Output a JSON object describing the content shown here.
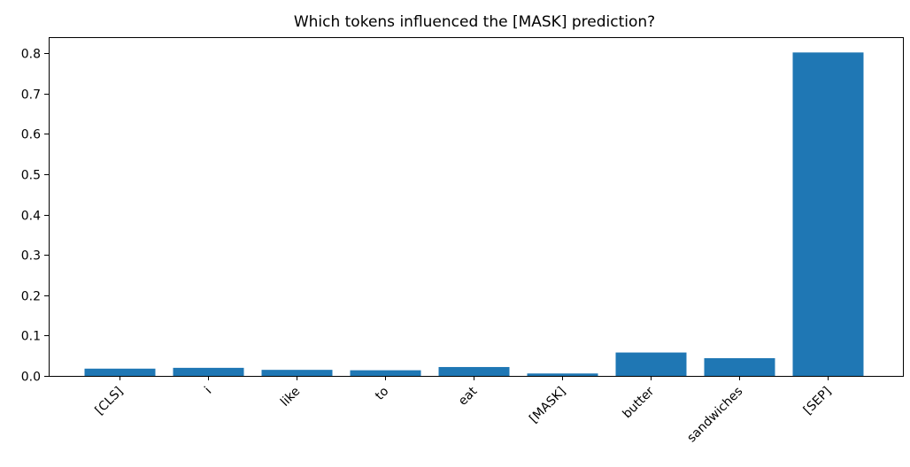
{
  "chart_data": {
    "type": "bar",
    "title": "Which tokens influenced the [MASK] prediction?",
    "xlabel": "",
    "ylabel": "",
    "categories": [
      "[CLS]",
      "i",
      "like",
      "to",
      "eat",
      "[MASK]",
      "butter",
      "sandwiches",
      "[SEP]"
    ],
    "values": [
      0.018,
      0.02,
      0.015,
      0.014,
      0.022,
      0.006,
      0.058,
      0.044,
      0.802
    ],
    "ylim": [
      0,
      0.84
    ],
    "yticks": [
      0.0,
      0.1,
      0.2,
      0.3,
      0.4,
      0.5,
      0.6,
      0.7,
      0.8
    ],
    "ytick_labels": [
      "0.0",
      "0.1",
      "0.2",
      "0.3",
      "0.4",
      "0.5",
      "0.6",
      "0.7",
      "0.8"
    ],
    "bar_color": "#1f77b4",
    "grid": false,
    "legend": "none"
  }
}
